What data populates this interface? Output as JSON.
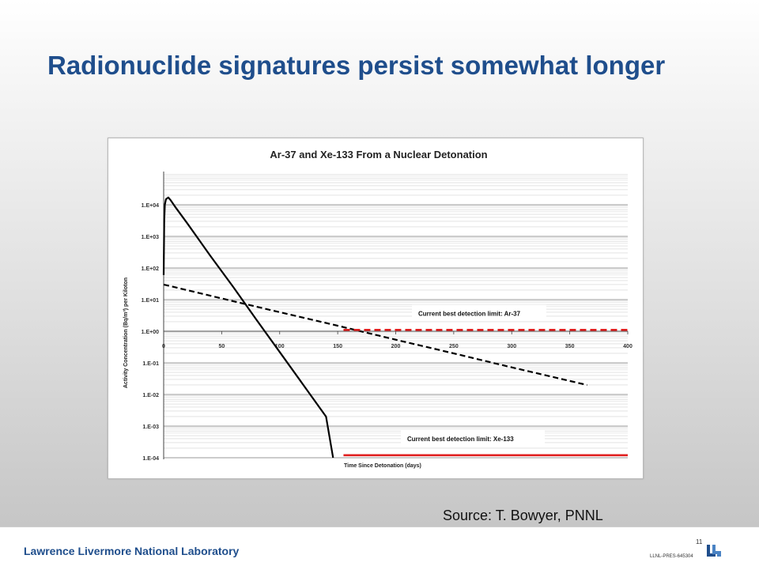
{
  "slide": {
    "title": "Radionuclide signatures persist somewhat longer",
    "source": "Source: T. Bowyer, PNNL",
    "page_number": "11",
    "document_id": "LLNL-PRES-645304",
    "organization": "Lawrence Livermore National Laboratory",
    "logo_icon": "llnl-logo-icon",
    "brand_color": "#1f4e8c"
  },
  "chart_data": {
    "type": "line",
    "title": "Ar-37 and Xe-133 From a Nuclear Detonation",
    "xlabel": "Time Since Detonation (days)",
    "ylabel": "Activity Concentration (Bq/m³) per Kiloton",
    "xlim": [
      0,
      400
    ],
    "ylim": [
      0.0001,
      100000
    ],
    "yscale": "log",
    "x_ticks": [
      0,
      50,
      100,
      150,
      200,
      250,
      300,
      350,
      400
    ],
    "y_ticks": [
      {
        "value": 10000,
        "label": "1.E+04"
      },
      {
        "value": 1000,
        "label": "1.E+03"
      },
      {
        "value": 100,
        "label": "1.E+02"
      },
      {
        "value": 10,
        "label": "1.E+01"
      },
      {
        "value": 1,
        "label": "1.E+00"
      },
      {
        "value": 0.1,
        "label": "1.E-01"
      },
      {
        "value": 0.01,
        "label": "1.E-02"
      },
      {
        "value": 0.001,
        "label": "1.E-03"
      },
      {
        "value": 0.0001,
        "label": "1.E-04"
      }
    ],
    "grid": true,
    "series": [
      {
        "style": "solid",
        "color": "#000000",
        "x": [
          0,
          0.5,
          1,
          2,
          4,
          6,
          10,
          20,
          40,
          60,
          80,
          100,
          120,
          140,
          146
        ],
        "y": [
          60,
          3000,
          10000,
          15000,
          17000,
          14000,
          8500,
          2700,
          250,
          25,
          2.3,
          0.22,
          0.021,
          0.002,
          0.0001
        ]
      },
      {
        "style": "dashed",
        "color": "#000000",
        "x": [
          0,
          50,
          100,
          150,
          200,
          250,
          300,
          365
        ],
        "y": [
          30,
          10.9,
          4.0,
          1.5,
          0.54,
          0.2,
          0.072,
          0.02
        ]
      }
    ],
    "limits": [
      {
        "label": "Current best detection limit: Ar-37",
        "value": 1.1,
        "x_start": 155,
        "x_end": 400,
        "color": "#e02020",
        "style": "dashed"
      },
      {
        "label": "Current best detection limit: Xe-133",
        "value": 0.00012,
        "x_start": 155,
        "x_end": 400,
        "color": "#e02020",
        "style": "solid"
      }
    ]
  }
}
